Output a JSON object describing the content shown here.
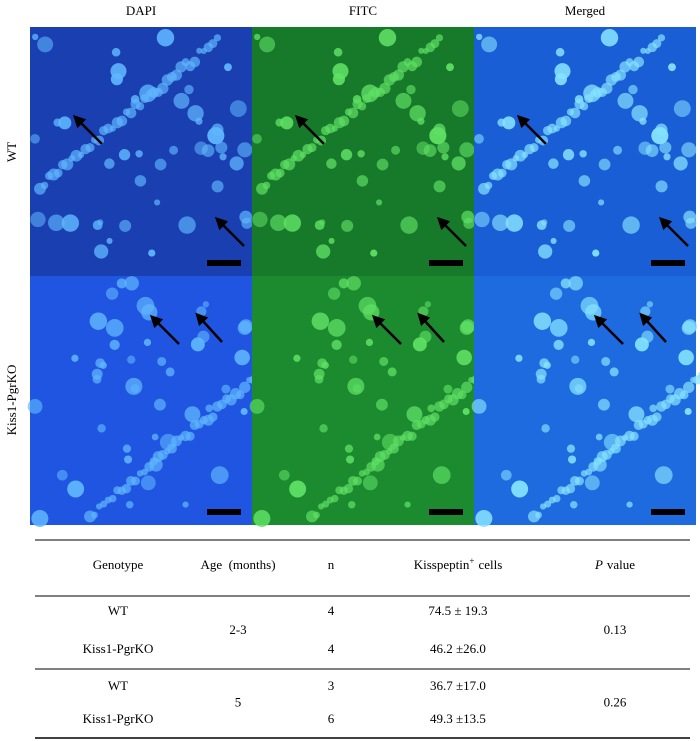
{
  "figure": {
    "columns": [
      "DAPI",
      "FITC",
      "Merged"
    ],
    "rows": [
      "WT",
      "Kiss1-PgrKO"
    ]
  },
  "table": {
    "headers": {
      "genotype": "Genotype",
      "age": "Age  (months)",
      "n": "n",
      "cells": {
        "text": "Kisspeptin",
        "sup": "+",
        "after": "cells"
      },
      "p": {
        "italic": "P",
        "rest": "value"
      }
    },
    "groups": [
      {
        "age": "2-3",
        "p": "0.13",
        "rows": [
          [
            "WT",
            "4",
            "74.5 ± 19.3"
          ],
          [
            "Kiss1-PgrKO",
            "4",
            "46.2 ±26.0"
          ]
        ]
      },
      {
        "age": "5",
        "p": "0.26",
        "rows": [
          [
            "WT",
            "3",
            "36.7 ±17.0"
          ],
          [
            "Kiss1-PgrKO",
            "6",
            "49.3 ±13.5"
          ]
        ]
      }
    ]
  }
}
